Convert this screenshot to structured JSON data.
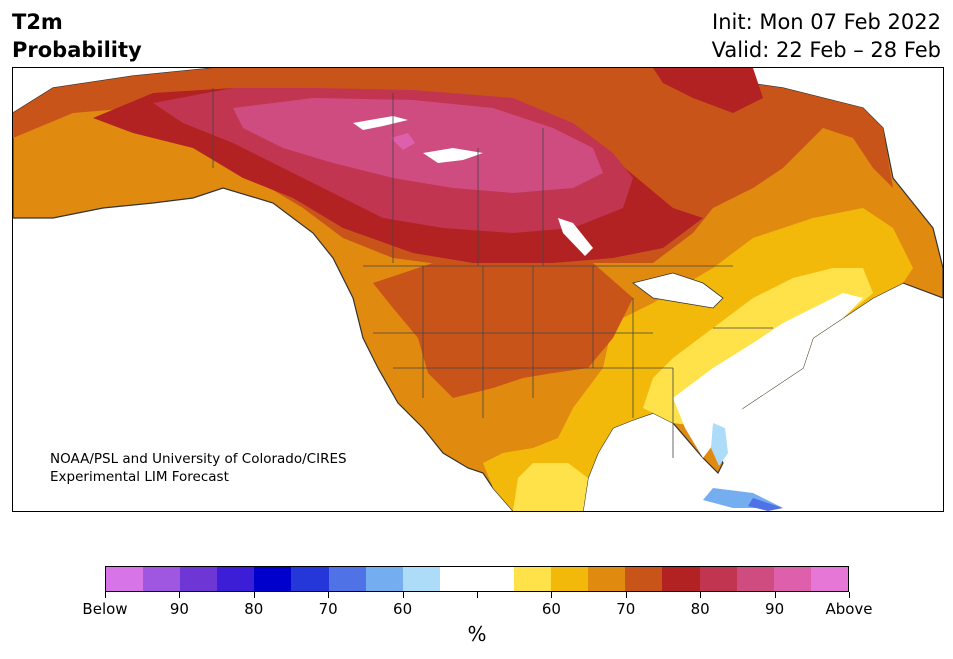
{
  "header": {
    "variable": "T2m",
    "product": "Probability",
    "init": "Init: Mon 07 Feb 2022",
    "valid": "Valid: 22 Feb – 28 Feb"
  },
  "map": {
    "region": "North America",
    "credit_line1": "NOAA/PSL and University of Colorado/CIRES",
    "credit_line2": "Experimental LIM Forecast"
  },
  "colorbar": {
    "unit": "%",
    "colors": [
      "#d774e8",
      "#9f56e0",
      "#6f36d6",
      "#3b1ed6",
      "#0000cc",
      "#2637d9",
      "#4f72e6",
      "#74adf0",
      "#addcf8",
      "#ffffff",
      "#ffffff",
      "#ffe14a",
      "#f2b90a",
      "#e08a10",
      "#c9541a",
      "#b22222",
      "#c13550",
      "#cf4c80",
      "#de60ac",
      "#e777d6"
    ],
    "tick_labels": [
      "Below",
      "90",
      "80",
      "70",
      "60",
      "",
      "60",
      "70",
      "80",
      "90",
      "Above"
    ]
  }
}
